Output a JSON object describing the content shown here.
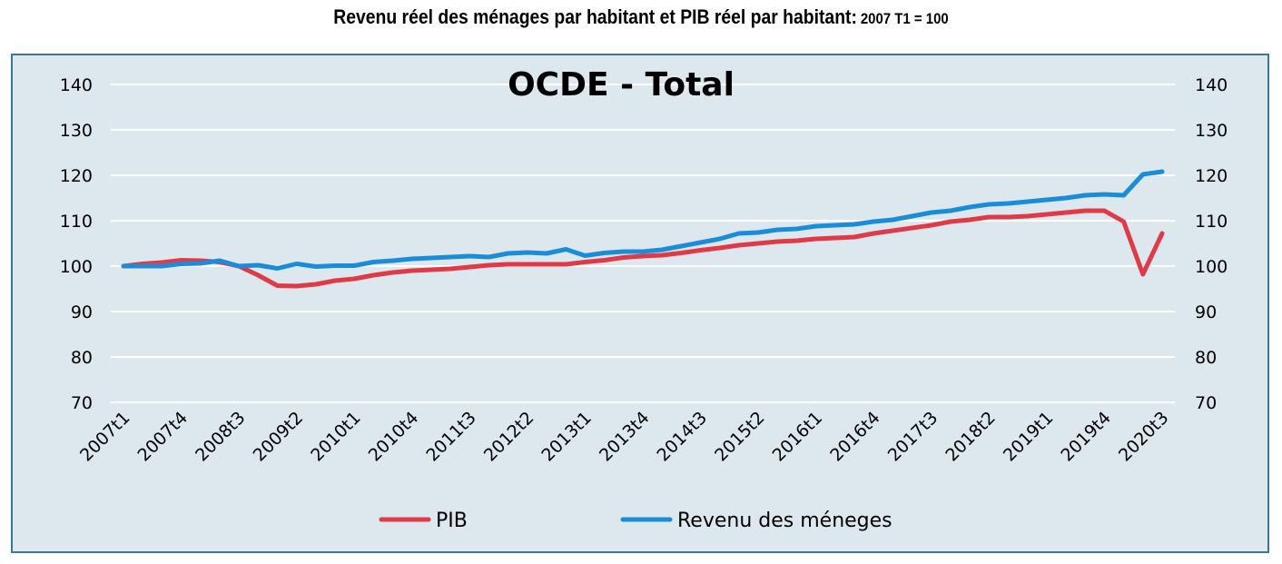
{
  "header": {
    "title": "Revenu réel des ménages par habitant et PIB réel par habitant:",
    "subtitle": "2007 T1 = 100"
  },
  "chart_data": {
    "type": "line",
    "title": "OCDE - Total",
    "xlabel": "",
    "ylabel": "",
    "ylim": [
      70,
      140
    ],
    "yticks": [
      70,
      80,
      90,
      100,
      110,
      120,
      130,
      140
    ],
    "grid": true,
    "legend_placement": "bottom",
    "x": [
      "2007t1",
      "2007t2",
      "2007t3",
      "2007t4",
      "2008t1",
      "2008t2",
      "2008t3",
      "2008t4",
      "2009t1",
      "2009t2",
      "2009t3",
      "2009t4",
      "2010t1",
      "2010t2",
      "2010t3",
      "2010t4",
      "2011t1",
      "2011t2",
      "2011t3",
      "2011t4",
      "2012t1",
      "2012t2",
      "2012t3",
      "2012t4",
      "2013t1",
      "2013t2",
      "2013t3",
      "2013t4",
      "2014t1",
      "2014t2",
      "2014t3",
      "2014t4",
      "2015t1",
      "2015t2",
      "2015t3",
      "2015t4",
      "2016t1",
      "2016t2",
      "2016t3",
      "2016t4",
      "2017t1",
      "2017t2",
      "2017t3",
      "2017t4",
      "2018t1",
      "2018t2",
      "2018t3",
      "2018t4",
      "2019t1",
      "2019t2",
      "2019t3",
      "2019t4",
      "2020t1",
      "2020t2",
      "2020t3"
    ],
    "x_tick_labels": [
      "2007t1",
      "2007t4",
      "2008t3",
      "2009t2",
      "2010t1",
      "2010t4",
      "2011t3",
      "2012t2",
      "2013t1",
      "2013t4",
      "2014t3",
      "2015t2",
      "2016t1",
      "2016t4",
      "2017t3",
      "2018t2",
      "2019t1",
      "2019t4",
      "2020t3"
    ],
    "series": [
      {
        "name": "PIB",
        "color": "#e03a48",
        "values": [
          100.0,
          100.5,
          100.8,
          101.3,
          101.2,
          100.9,
          100.0,
          98.0,
          95.7,
          95.6,
          96.0,
          96.8,
          97.2,
          98.0,
          98.6,
          99.0,
          99.2,
          99.4,
          99.8,
          100.2,
          100.4,
          100.4,
          100.4,
          100.4,
          100.9,
          101.3,
          101.9,
          102.2,
          102.4,
          102.9,
          103.5,
          104.0,
          104.6,
          105.0,
          105.4,
          105.6,
          106.0,
          106.2,
          106.4,
          107.2,
          107.8,
          108.4,
          109.0,
          109.8,
          110.2,
          110.8,
          110.8,
          111.0,
          111.4,
          111.8,
          112.2,
          112.2,
          109.8,
          98.2,
          107.2
        ]
      },
      {
        "name": "Revenu des méneges",
        "color": "#1b8dd8",
        "values": [
          100.0,
          100.0,
          100.0,
          100.5,
          100.6,
          101.2,
          100.0,
          100.2,
          99.5,
          100.5,
          99.9,
          100.1,
          100.1,
          100.9,
          101.2,
          101.6,
          101.8,
          102.0,
          102.2,
          102.0,
          102.8,
          103.0,
          102.8,
          103.7,
          102.3,
          102.9,
          103.2,
          103.2,
          103.6,
          104.4,
          105.2,
          106.0,
          107.2,
          107.4,
          108.0,
          108.2,
          108.8,
          109.0,
          109.2,
          109.8,
          110.2,
          111.0,
          111.8,
          112.2,
          113.0,
          113.6,
          113.8,
          114.2,
          114.6,
          115.0,
          115.6,
          115.8,
          115.6,
          120.2,
          120.8
        ]
      }
    ]
  }
}
